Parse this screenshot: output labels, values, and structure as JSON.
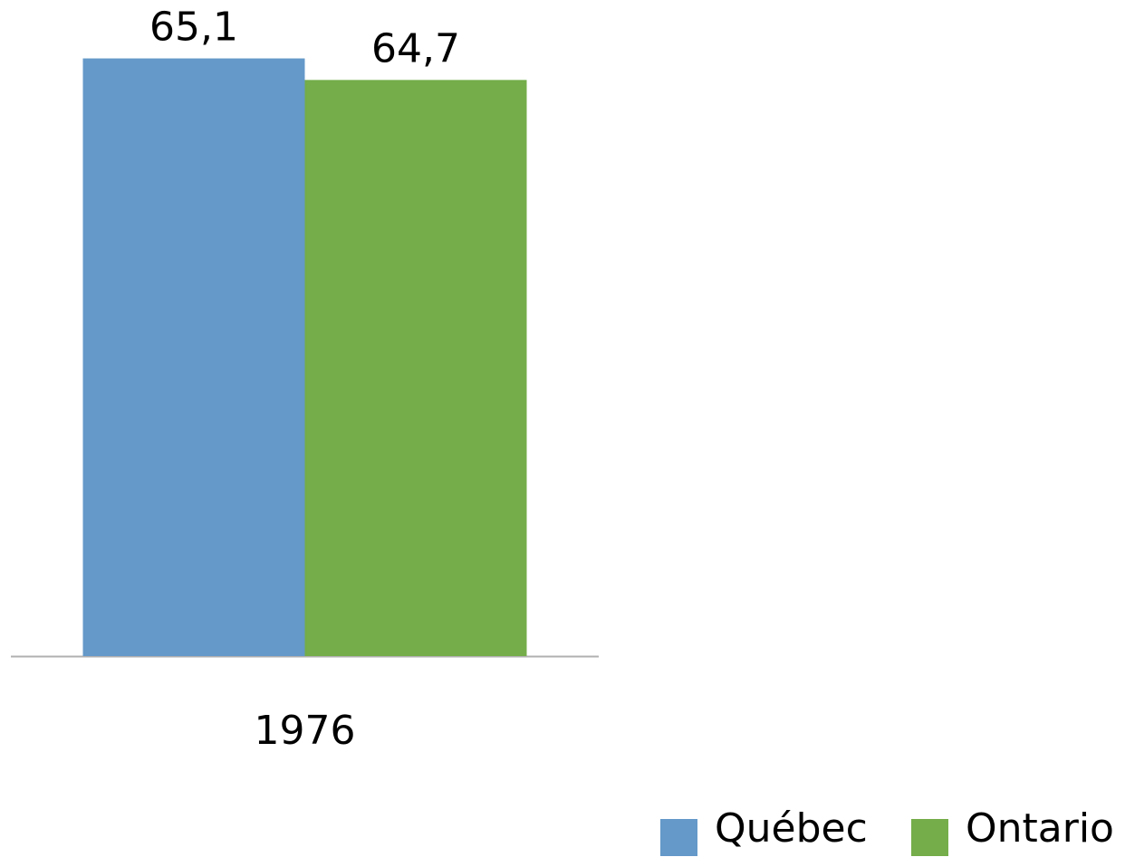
{
  "chart_data": {
    "type": "bar",
    "categories": [
      "1976"
    ],
    "series": [
      {
        "name": "Québec",
        "color": "#6499c9",
        "values": [
          65.1
        ],
        "value_labels": [
          "65,1"
        ]
      },
      {
        "name": "Ontario",
        "color": "#74ad4a",
        "values": [
          64.7
        ],
        "value_labels": [
          "64,7"
        ]
      }
    ],
    "ylim": [
      54,
      66
    ],
    "legend": "bottom-right"
  }
}
